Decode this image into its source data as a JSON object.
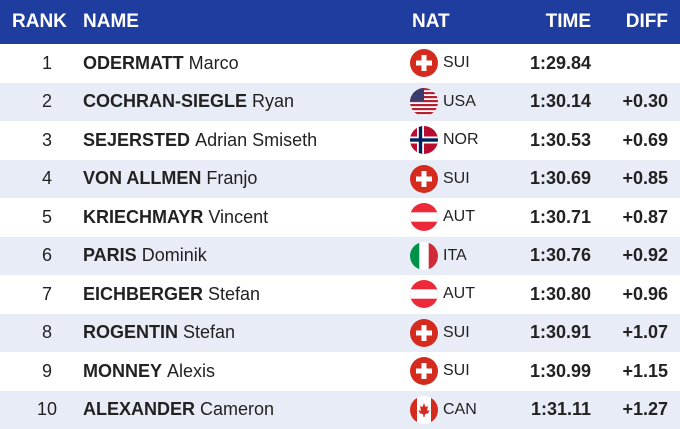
{
  "table": {
    "header": [
      "RANK",
      "NAME",
      "NAT",
      "TIME",
      "DIFF"
    ],
    "rows": [
      {
        "rank": 1,
        "last": "ODERMATT",
        "first": "Marco",
        "nat": "SUI",
        "time": "1:29.84",
        "diff": null
      },
      {
        "rank": 2,
        "last": "COCHRAN-SIEGLE",
        "first": "Ryan",
        "nat": "USA",
        "time": "1:30.14",
        "diff": "+0.30"
      },
      {
        "rank": 3,
        "last": "SEJERSTED",
        "first": "Adrian Smiseth",
        "nat": "NOR",
        "time": "1:30.53",
        "diff": "+0.69"
      },
      {
        "rank": 4,
        "last": "VON ALLMEN",
        "first": "Franjo",
        "nat": "SUI",
        "time": "1:30.69",
        "diff": "+0.85"
      },
      {
        "rank": 5,
        "last": "KRIECHMAYR",
        "first": "Vincent",
        "nat": "AUT",
        "time": "1:30.71",
        "diff": "+0.87"
      },
      {
        "rank": 6,
        "last": "PARIS",
        "first": "Dominik",
        "nat": "ITA",
        "time": "1:30.76",
        "diff": "+0.92"
      },
      {
        "rank": 7,
        "last": "EICHBERGER",
        "first": "Stefan",
        "nat": "AUT",
        "time": "1:30.80",
        "diff": "+0.96"
      },
      {
        "rank": 8,
        "last": "ROGENTIN",
        "first": "Stefan",
        "nat": "SUI",
        "time": "1:30.91",
        "diff": "+1.07"
      },
      {
        "rank": 9,
        "last": "MONNEY",
        "first": "Alexis",
        "nat": "SUI",
        "time": "1:30.99",
        "diff": "+1.15"
      },
      {
        "rank": 10,
        "last": "ALEXANDER",
        "first": "Cameron",
        "nat": "CAN",
        "time": "1:31.11",
        "diff": "+1.27"
      }
    ]
  }
}
